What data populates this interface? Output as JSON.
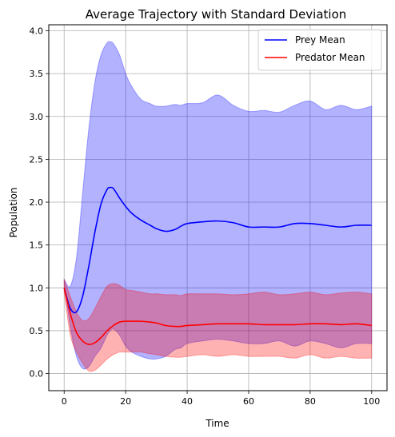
{
  "chart_data": {
    "type": "line",
    "title": "Average Trajectory with Standard Deviation",
    "xlabel": "Time",
    "ylabel": "Population",
    "xlim": [
      -5,
      105
    ],
    "ylim": [
      -0.2,
      4.07
    ],
    "xticks": [
      0,
      20,
      40,
      60,
      80,
      100
    ],
    "xtick_labels": [
      "0",
      "20",
      "40",
      "60",
      "80",
      "100"
    ],
    "yticks": [
      0.0,
      0.5,
      1.0,
      1.5,
      2.0,
      2.5,
      3.0,
      3.5,
      4.0
    ],
    "ytick_labels": [
      "0.0",
      "0.5",
      "1.0",
      "1.5",
      "2.0",
      "2.5",
      "3.0",
      "3.5",
      "4.0"
    ],
    "grid": true,
    "legend_position": "upper right",
    "series": [
      {
        "name": "Prey Mean",
        "color": "#0000ff",
        "band_color": "#0000ff",
        "x": [
          0,
          2,
          4,
          6,
          8,
          10,
          12,
          14,
          15,
          16,
          18,
          20,
          22,
          25,
          28,
          30,
          33,
          36,
          38,
          40,
          45,
          50,
          55,
          60,
          65,
          70,
          75,
          80,
          85,
          90,
          95,
          100
        ],
        "mean": [
          1.0,
          0.76,
          0.72,
          0.9,
          1.25,
          1.65,
          1.98,
          2.15,
          2.17,
          2.16,
          2.05,
          1.95,
          1.87,
          1.79,
          1.73,
          1.69,
          1.66,
          1.68,
          1.72,
          1.75,
          1.77,
          1.78,
          1.76,
          1.71,
          1.71,
          1.71,
          1.75,
          1.75,
          1.73,
          1.71,
          1.73,
          1.73
        ],
        "upper": [
          1.1,
          1.02,
          1.35,
          2.1,
          2.85,
          3.4,
          3.72,
          3.86,
          3.87,
          3.85,
          3.72,
          3.5,
          3.35,
          3.2,
          3.15,
          3.12,
          3.12,
          3.14,
          3.13,
          3.15,
          3.16,
          3.25,
          3.13,
          3.06,
          3.07,
          3.05,
          3.13,
          3.18,
          3.08,
          3.13,
          3.08,
          3.12
        ],
        "lower": [
          1.05,
          0.55,
          0.2,
          0.06,
          0.08,
          0.2,
          0.3,
          0.45,
          0.5,
          0.52,
          0.45,
          0.32,
          0.25,
          0.2,
          0.17,
          0.17,
          0.2,
          0.28,
          0.3,
          0.35,
          0.38,
          0.4,
          0.38,
          0.35,
          0.35,
          0.38,
          0.32,
          0.38,
          0.35,
          0.3,
          0.35,
          0.35
        ]
      },
      {
        "name": "Predator Mean",
        "color": "#ff0000",
        "band_color": "#ff0000",
        "x": [
          0,
          2,
          4,
          6,
          8,
          10,
          12,
          14,
          16,
          18,
          20,
          22,
          25,
          28,
          30,
          33,
          36,
          38,
          40,
          45,
          50,
          55,
          60,
          65,
          70,
          75,
          80,
          85,
          90,
          95,
          100
        ],
        "mean": [
          1.0,
          0.7,
          0.48,
          0.38,
          0.34,
          0.36,
          0.42,
          0.5,
          0.56,
          0.6,
          0.61,
          0.61,
          0.61,
          0.6,
          0.59,
          0.56,
          0.55,
          0.55,
          0.56,
          0.57,
          0.58,
          0.58,
          0.58,
          0.57,
          0.57,
          0.57,
          0.58,
          0.58,
          0.57,
          0.58,
          0.56
        ],
        "upper": [
          1.1,
          0.9,
          0.72,
          0.62,
          0.64,
          0.76,
          0.9,
          1.02,
          1.05,
          1.03,
          0.98,
          0.97,
          0.95,
          0.93,
          0.93,
          0.92,
          0.92,
          0.91,
          0.93,
          0.93,
          0.93,
          0.92,
          0.93,
          0.95,
          0.92,
          0.93,
          0.95,
          0.92,
          0.94,
          0.95,
          0.93
        ],
        "lower": [
          0.95,
          0.45,
          0.25,
          0.12,
          0.03,
          0.04,
          0.1,
          0.17,
          0.22,
          0.25,
          0.25,
          0.25,
          0.25,
          0.23,
          0.22,
          0.2,
          0.19,
          0.19,
          0.2,
          0.22,
          0.2,
          0.22,
          0.2,
          0.2,
          0.2,
          0.18,
          0.22,
          0.18,
          0.2,
          0.18,
          0.18
        ]
      }
    ]
  }
}
